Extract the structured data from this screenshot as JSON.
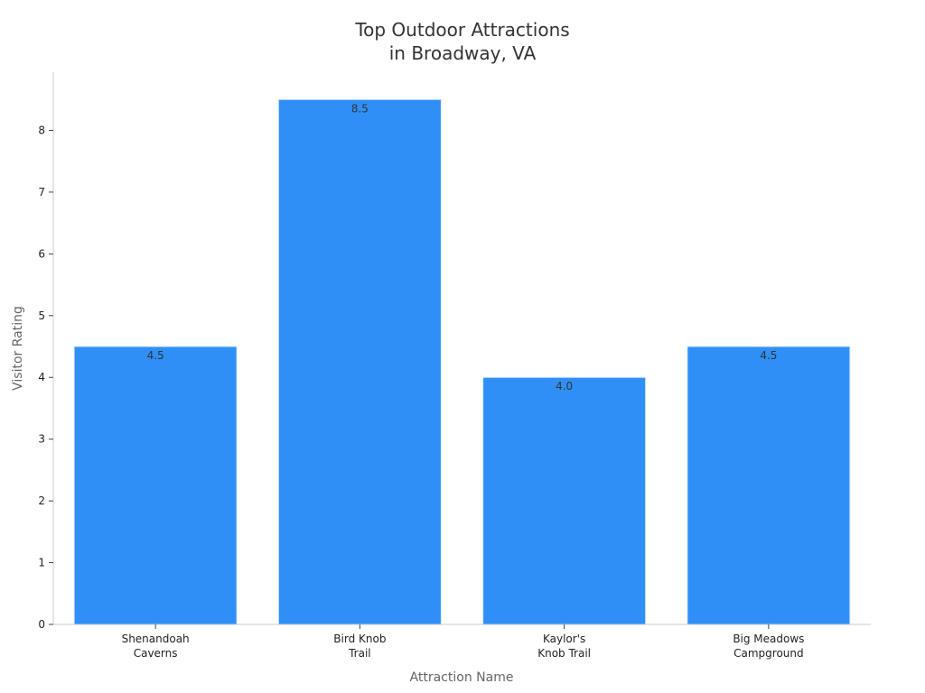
{
  "chart_data": {
    "type": "bar",
    "title": [
      "Top Outdoor Attractions",
      "in Broadway, VA"
    ],
    "xlabel": "Attraction Name",
    "ylabel": "Visitor Rating",
    "categories": [
      [
        "Shenandoah",
        "Caverns"
      ],
      [
        "Bird Knob",
        "Trail"
      ],
      [
        "Kaylor's",
        "Knob Trail"
      ],
      [
        "Big Meadows",
        "Campground"
      ]
    ],
    "values": [
      4.5,
      8.5,
      4.0,
      4.5
    ],
    "value_labels": [
      "4.5",
      "8.5",
      "4.0",
      "4.5"
    ],
    "yticks": [
      "0",
      "1",
      "2",
      "3",
      "4",
      "5",
      "6",
      "7",
      "8"
    ],
    "ylim": [
      0,
      8.9
    ],
    "grid": false,
    "bar_color": "#2f8ff7",
    "legend": "none"
  }
}
